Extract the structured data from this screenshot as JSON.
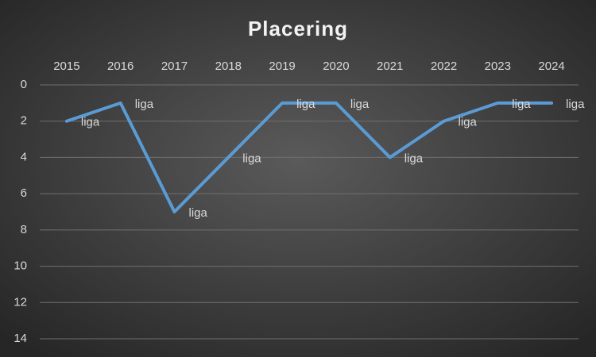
{
  "chart_data": {
    "type": "line",
    "title": "Placering",
    "categories": [
      "2015",
      "2016",
      "2017",
      "2018",
      "2019",
      "2020",
      "2021",
      "2022",
      "2023",
      "2024"
    ],
    "series": [
      {
        "name": "liga",
        "color": "#5b9bd5",
        "values": [
          2,
          1,
          7,
          4,
          1,
          1,
          4,
          2,
          1,
          1
        ]
      }
    ],
    "ylim": [
      0,
      14
    ],
    "yticks": [
      0,
      2,
      4,
      6,
      8,
      10,
      12,
      14
    ],
    "y_inverted": true,
    "grid": true,
    "x_axis_position": "top",
    "data_labels": "series-name"
  }
}
